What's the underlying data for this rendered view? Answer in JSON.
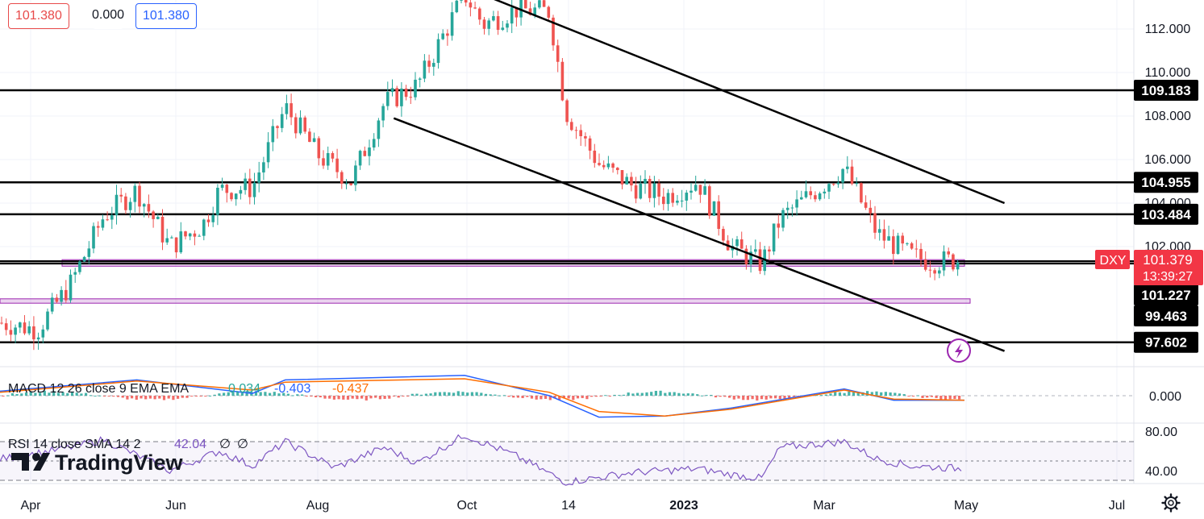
{
  "header": {
    "value_left": "101.380",
    "change": "0.000",
    "value_right": "101.380"
  },
  "price_axis": {
    "ticks": [
      "112.000",
      "110.000",
      "108.000",
      "106.000",
      "104.000",
      "102.000"
    ],
    "labels": [
      {
        "text": "109.183",
        "value": 109.183
      },
      {
        "text": "104.955",
        "value": 104.955
      },
      {
        "text": "103.484",
        "value": 103.484
      },
      {
        "text": "101.227",
        "value": 101.227
      },
      {
        "text": "99.463",
        "value": 99.463
      },
      {
        "text": "97.602",
        "value": 97.602
      }
    ],
    "current": {
      "symbol": "DXY",
      "price": "101.379",
      "countdown": "13:39:27",
      "value": 101.379,
      "color": "#f23645"
    }
  },
  "time_axis": {
    "labels": [
      "Apr",
      "Jun",
      "Aug",
      "Oct",
      "14",
      "2023",
      "Mar",
      "May",
      "Jul"
    ]
  },
  "macd": {
    "legend": "MACD 12 26 close 9 EMA EMA",
    "histogram": "0.034",
    "macd": "-0.403",
    "signal": "-0.437",
    "axis_tick": "0.000",
    "colors": {
      "macd_line": "#2962ff",
      "signal_line": "#ff6d00",
      "hist_pos": "#26a69a",
      "hist_neg": "#ef5350"
    }
  },
  "rsi": {
    "legend": "RSI 14 close SMA 14 2",
    "value": "42.04",
    "extra1": "∅",
    "extra2": "∅",
    "axis_ticks": [
      "80.00",
      "40.00"
    ],
    "color": "#7e57c2"
  },
  "branding": {
    "logo_text": "TradingView"
  },
  "icons": {
    "alert": "lightning-icon",
    "settings": "gear-icon"
  },
  "chart_data": [
    {
      "type": "candlestick",
      "title": "DXY",
      "x_range": [
        "2022-03-15",
        "2023-07-01"
      ],
      "ylim": [
        96.8,
        113.8
      ],
      "horizontal_levels": [
        109.183,
        104.955,
        103.484,
        101.227,
        97.602
      ],
      "zones": [
        [
          101.1,
          101.4
        ],
        [
          99.4,
          99.6
        ]
      ],
      "trendlines": [
        {
          "from": [
            "2022-10-10",
            113.4
          ],
          "to": [
            "2023-05-15",
            104.0
          ]
        },
        {
          "from": [
            "2022-08-29",
            107.9
          ],
          "to": [
            "2023-05-15",
            97.2
          ]
        }
      ],
      "close_path": [
        [
          "2022-03-15",
          98.5
        ],
        [
          "2022-03-31",
          98.2
        ],
        [
          "2022-04-14",
          100.3
        ],
        [
          "2022-04-28",
          103.4
        ],
        [
          "2022-05-12",
          104.6
        ],
        [
          "2022-05-26",
          102.0
        ],
        [
          "2022-06-09",
          103.0
        ],
        [
          "2022-06-16",
          104.6
        ],
        [
          "2022-06-30",
          104.7
        ],
        [
          "2022-07-14",
          108.4
        ],
        [
          "2022-07-28",
          106.2
        ],
        [
          "2022-08-11",
          105.0
        ],
        [
          "2022-08-25",
          108.6
        ],
        [
          "2022-09-08",
          109.4
        ],
        [
          "2022-09-28",
          113.6
        ],
        [
          "2022-10-06",
          112.2
        ],
        [
          "2022-10-20",
          112.9
        ],
        [
          "2022-11-03",
          112.8
        ],
        [
          "2022-11-10",
          108.2
        ],
        [
          "2022-11-24",
          105.8
        ],
        [
          "2022-12-08",
          104.8
        ],
        [
          "2022-12-22",
          104.3
        ],
        [
          "2023-01-05",
          105.0
        ],
        [
          "2023-01-19",
          102.0
        ],
        [
          "2023-02-01",
          101.2
        ],
        [
          "2023-02-09",
          103.3
        ],
        [
          "2023-02-23",
          104.5
        ],
        [
          "2023-03-08",
          105.6
        ],
        [
          "2023-03-22",
          102.6
        ],
        [
          "2023-04-05",
          101.6
        ],
        [
          "2023-04-14",
          101.3
        ],
        [
          "2023-04-28",
          101.4
        ]
      ]
    },
    {
      "type": "line",
      "title": "MACD 12 26 close 9",
      "series": [
        {
          "name": "MACD",
          "points": [
            [
              "2022-03-15",
              0.4
            ],
            [
              "2022-05-12",
              1.4
            ],
            [
              "2022-06-30",
              0.2
            ],
            [
              "2022-07-14",
              1.4
            ],
            [
              "2022-09-28",
              1.8
            ],
            [
              "2022-11-03",
              0.0
            ],
            [
              "2022-11-24",
              -1.9
            ],
            [
              "2022-12-22",
              -1.8
            ],
            [
              "2023-01-19",
              -1.1
            ],
            [
              "2023-03-08",
              0.6
            ],
            [
              "2023-03-29",
              -0.4
            ],
            [
              "2023-04-28",
              -0.4
            ]
          ]
        },
        {
          "name": "Signal",
          "points": [
            [
              "2022-03-15",
              0.3
            ],
            [
              "2022-05-12",
              1.3
            ],
            [
              "2022-06-30",
              0.5
            ],
            [
              "2022-07-14",
              1.2
            ],
            [
              "2022-09-28",
              1.5
            ],
            [
              "2022-11-03",
              0.3
            ],
            [
              "2022-11-24",
              -1.4
            ],
            [
              "2022-12-22",
              -1.8
            ],
            [
              "2023-01-19",
              -1.2
            ],
            [
              "2023-03-08",
              0.5
            ],
            [
              "2023-03-29",
              -0.3
            ],
            [
              "2023-04-28",
              -0.4
            ]
          ]
        }
      ]
    },
    {
      "type": "line",
      "title": "RSI 14 close",
      "ylim": [
        20,
        90
      ],
      "guides": [
        70,
        50,
        30
      ],
      "series": [
        {
          "name": "RSI",
          "points": [
            [
              "2022-03-15",
              52
            ],
            [
              "2022-04-10",
              62
            ],
            [
              "2022-04-28",
              72
            ],
            [
              "2022-05-26",
              40
            ],
            [
              "2022-06-16",
              60
            ],
            [
              "2022-06-30",
              45
            ],
            [
              "2022-07-14",
              70
            ],
            [
              "2022-08-04",
              43
            ],
            [
              "2022-08-25",
              64
            ],
            [
              "2022-09-08",
              48
            ],
            [
              "2022-09-28",
              77
            ],
            [
              "2022-10-20",
              55
            ],
            [
              "2022-11-10",
              28
            ],
            [
              "2022-12-08",
              38
            ],
            [
              "2023-01-05",
              42
            ],
            [
              "2023-01-19",
              36
            ],
            [
              "2023-02-01",
              32
            ],
            [
              "2023-02-09",
              64
            ],
            [
              "2023-03-08",
              70
            ],
            [
              "2023-03-22",
              52
            ],
            [
              "2023-04-05",
              45
            ],
            [
              "2023-04-28",
              42
            ]
          ]
        }
      ]
    }
  ]
}
